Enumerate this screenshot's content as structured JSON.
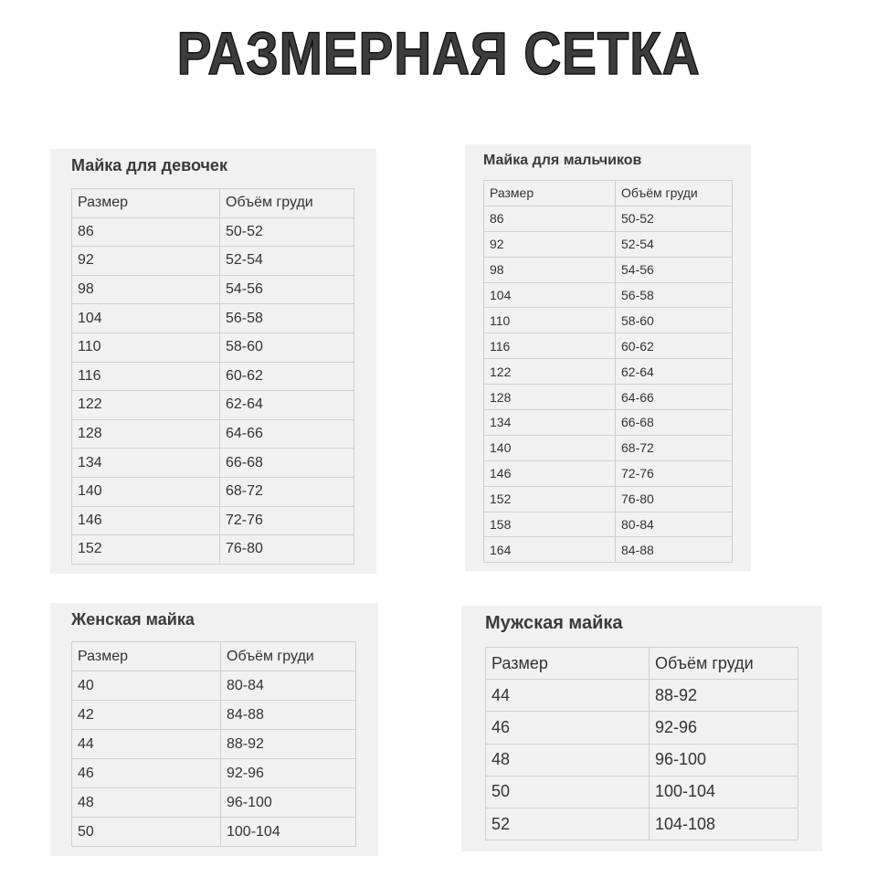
{
  "title": "РАЗМЕРНАЯ СЕТКА",
  "tables": {
    "girls": {
      "title": "Майка для девочек",
      "headers": [
        "Размер",
        "Объём груди"
      ],
      "rows": [
        [
          "86",
          "50-52"
        ],
        [
          "92",
          "52-54"
        ],
        [
          "98",
          "54-56"
        ],
        [
          "104",
          "56-58"
        ],
        [
          "110",
          "58-60"
        ],
        [
          "116",
          "60-62"
        ],
        [
          "122",
          "62-64"
        ],
        [
          "128",
          "64-66"
        ],
        [
          "134",
          "66-68"
        ],
        [
          "140",
          "68-72"
        ],
        [
          "146",
          "72-76"
        ],
        [
          "152",
          "76-80"
        ]
      ]
    },
    "boys": {
      "title": "Майка для мальчиков",
      "headers": [
        "Размер",
        "Объём груди"
      ],
      "rows": [
        [
          "86",
          "50-52"
        ],
        [
          "92",
          "52-54"
        ],
        [
          "98",
          "54-56"
        ],
        [
          "104",
          "56-58"
        ],
        [
          "110",
          "58-60"
        ],
        [
          "116",
          "60-62"
        ],
        [
          "122",
          "62-64"
        ],
        [
          "128",
          "64-66"
        ],
        [
          "134",
          "66-68"
        ],
        [
          "140",
          "68-72"
        ],
        [
          "146",
          "72-76"
        ],
        [
          "152",
          "76-80"
        ],
        [
          "158",
          "80-84"
        ],
        [
          "164",
          "84-88"
        ]
      ]
    },
    "women": {
      "title": "Женская майка",
      "headers": [
        "Размер",
        "Объём груди"
      ],
      "rows": [
        [
          "40",
          "80-84"
        ],
        [
          "42",
          "84-88"
        ],
        [
          "44",
          "88-92"
        ],
        [
          "46",
          "92-96"
        ],
        [
          "48",
          "96-100"
        ],
        [
          "50",
          "100-104"
        ]
      ]
    },
    "men": {
      "title": "Мужская майка",
      "headers": [
        "Размер",
        "Объём груди"
      ],
      "rows": [
        [
          "44",
          "88-92"
        ],
        [
          "46",
          "92-96"
        ],
        [
          "48",
          "96-100"
        ],
        [
          "50",
          "100-104"
        ],
        [
          "52",
          "104-108"
        ]
      ]
    }
  }
}
